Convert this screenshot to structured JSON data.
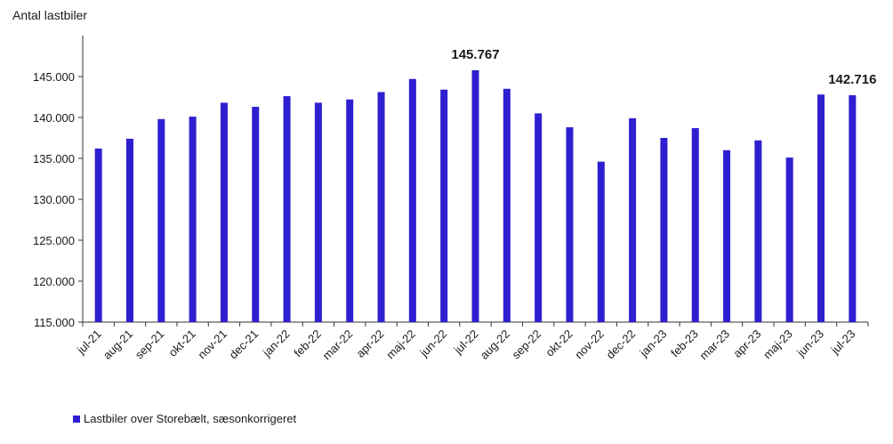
{
  "chart_data": {
    "type": "bar",
    "ylabel": "Antal lastbiler",
    "ylim": [
      115000,
      150000
    ],
    "yticks": [
      115000,
      120000,
      125000,
      130000,
      135000,
      140000,
      145000
    ],
    "ytick_labels": [
      "115.000",
      "120.000",
      "125.000",
      "130.000",
      "135.000",
      "140.000",
      "145.000"
    ],
    "categories": [
      "jul-21",
      "aug-21",
      "sep-21",
      "okt-21",
      "nov-21",
      "dec-21",
      "jan-22",
      "feb-22",
      "mar-22",
      "apr-22",
      "maj-22",
      "jun-22",
      "jul-22",
      "aug-22",
      "sep-22",
      "okt-22",
      "nov-22",
      "dec-22",
      "jan-23",
      "feb-23",
      "mar-23",
      "apr-23",
      "maj-23",
      "jun-23",
      "jul-23"
    ],
    "series": [
      {
        "name": "Lastbiler over Storebælt, sæsonkorrigeret",
        "color": "#2e1fd0",
        "values": [
          136200,
          137400,
          139800,
          140100,
          141800,
          141300,
          142600,
          141800,
          142200,
          143100,
          144700,
          143400,
          145767,
          143500,
          140500,
          138800,
          134600,
          139900,
          137500,
          138700,
          136000,
          137200,
          135100,
          142800,
          142716
        ]
      }
    ],
    "annotations": [
      {
        "index": 12,
        "text": "145.767"
      },
      {
        "index": 24,
        "text": "142.716"
      }
    ],
    "legend_position": "bottom-left",
    "grid": false
  }
}
